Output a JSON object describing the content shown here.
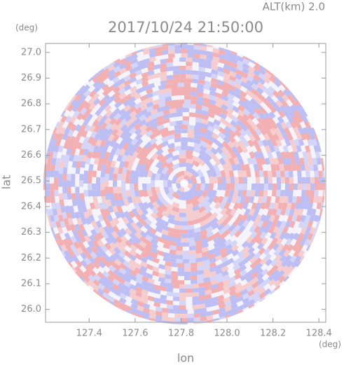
{
  "chart_data": {
    "type": "field",
    "title": "2017/10/24 21:50:00",
    "annotation": "ALT(km) 2.0",
    "xlabel": "lon",
    "ylabel": "lat",
    "xunit": "(deg)",
    "yunit": "(deg)",
    "xlim": [
      127.21,
      128.43
    ],
    "ylim": [
      25.95,
      27.035
    ],
    "xticks": [
      127.4,
      127.6,
      127.8,
      {
        "value": 128.0,
        "label": "128.0"
      },
      128.2,
      128.4
    ],
    "yticks": [
      {
        "value": 26.0,
        "label": "26.0"
      },
      26.1,
      26.2,
      26.3,
      26.4,
      26.5,
      26.6,
      26.7,
      26.8,
      26.9,
      {
        "value": 27.0,
        "label": "27.0"
      }
    ]
  }
}
